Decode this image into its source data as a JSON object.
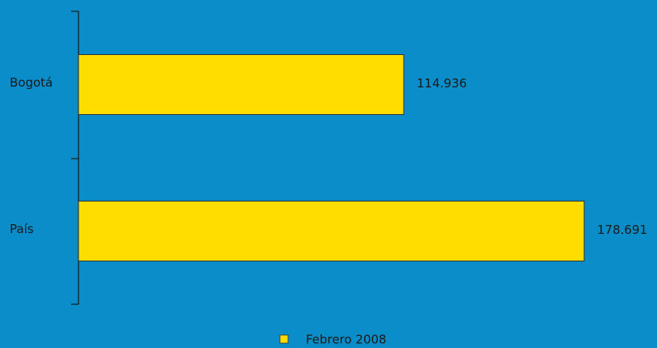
{
  "chart_data": {
    "type": "hbar",
    "categories": [
      "Bogotá",
      "País"
    ],
    "series": [
      {
        "name": "Febrero 2008",
        "color": "#ffdd00",
        "values": [
          114936,
          178691
        ],
        "value_labels": [
          "114.936",
          "178.691"
        ]
      }
    ]
  }
}
